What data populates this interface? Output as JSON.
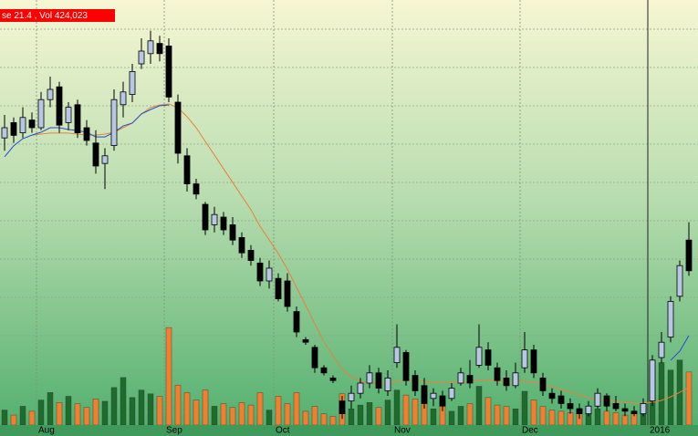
{
  "chart_data": {
    "type": "candlestick",
    "title": "se 21.4 , Vol 424,023",
    "categories": [
      null,
      null,
      null,
      null,
      "Aug",
      null,
      null,
      null,
      null,
      null,
      null,
      null,
      null,
      null,
      null,
      null,
      null,
      null,
      "Sep",
      null,
      null,
      null,
      null,
      null,
      null,
      null,
      null,
      null,
      null,
      null,
      "Oct",
      null,
      null,
      null,
      null,
      null,
      null,
      null,
      null,
      null,
      null,
      null,
      null,
      "Nov",
      null,
      null,
      null,
      null,
      null,
      null,
      null,
      null,
      null,
      null,
      null,
      null,
      null,
      "Dec",
      null,
      null,
      null,
      null,
      null,
      null,
      null,
      null,
      null,
      null,
      null,
      null,
      null,
      "2016",
      null,
      null,
      null,
      null
    ],
    "open": [
      26.6,
      27.2,
      26.8,
      27.3,
      27.0,
      28.1,
      28.6,
      27.2,
      27.9,
      27.0,
      26.4,
      25.6,
      26.3,
      27.9,
      28.3,
      29.5,
      29.9,
      30.3,
      30.2,
      28.0,
      25.9,
      24.8,
      24.0,
      23.2,
      23.5,
      23.2,
      22.7,
      22.2,
      21.7,
      21.0,
      21.1,
      21.0,
      19.8,
      18.7,
      18.4,
      17.6,
      17.2,
      16.3,
      16.3,
      16.6,
      17.0,
      17.4,
      16.7,
      17.8,
      18.2,
      17.3,
      16.9,
      16.4,
      16.5,
      16.4,
      17.0,
      17.3,
      17.7,
      18.3,
      17.6,
      17.2,
      16.9,
      17.6,
      18.3,
      17.2,
      16.6,
      16.5,
      16.2,
      16.0,
      15.8,
      16.1,
      16.5,
      16.2,
      16.0,
      15.9,
      15.8,
      16.3,
      18.0,
      18.8,
      20.4,
      22.6
    ],
    "high": [
      27.5,
      27.4,
      27.8,
      27.6,
      28.4,
      29.0,
      28.8,
      28.0,
      28.1,
      27.3,
      26.9,
      26.2,
      28.5,
      28.8,
      29.5,
      30.5,
      30.8,
      30.6,
      30.5,
      28.3,
      26.2,
      25.0,
      24.1,
      23.9,
      23.7,
      23.5,
      22.9,
      22.4,
      21.9,
      21.8,
      21.3,
      21.3,
      20.0,
      18.8,
      18.5,
      17.7,
      17.3,
      16.5,
      16.9,
      17.2,
      17.7,
      17.6,
      17.5,
      19.3,
      18.3,
      17.5,
      17.2,
      16.8,
      16.7,
      17.0,
      17.6,
      17.9,
      19.3,
      18.6,
      17.8,
      17.5,
      17.8,
      19.0,
      18.5,
      17.4,
      16.8,
      16.7,
      16.4,
      16.2,
      16.3,
      16.8,
      16.6,
      16.5,
      16.2,
      16.1,
      16.4,
      18.1,
      19.0,
      20.4,
      21.8,
      23.3
    ],
    "low": [
      26.1,
      26.4,
      26.6,
      26.8,
      26.9,
      27.8,
      26.8,
      26.9,
      26.6,
      26.3,
      25.2,
      24.6,
      26.1,
      27.4,
      28.0,
      29.3,
      29.5,
      29.6,
      28.0,
      25.6,
      24.5,
      24.2,
      22.8,
      22.9,
      22.8,
      22.4,
      21.9,
      21.6,
      20.8,
      20.7,
      20.2,
      19.8,
      18.8,
      18.5,
      17.4,
      17.3,
      17.0,
      15.6,
      16.0,
      16.4,
      16.8,
      16.6,
      16.5,
      17.6,
      16.9,
      16.5,
      16.0,
      16.1,
      15.9,
      16.3,
      16.9,
      16.8,
      17.6,
      17.5,
      16.9,
      16.7,
      16.8,
      17.4,
      17.2,
      16.5,
      16.2,
      16.0,
      15.8,
      15.6,
      15.7,
      16.0,
      15.9,
      15.9,
      15.7,
      15.7,
      15.7,
      16.1,
      17.8,
      18.6,
      20.2,
      21.2
    ],
    "close": [
      27.0,
      26.7,
      27.4,
      27.0,
      28.1,
      28.5,
      27.1,
      27.8,
      26.8,
      26.5,
      25.5,
      25.9,
      28.1,
      28.4,
      29.2,
      30.0,
      30.4,
      29.9,
      28.2,
      26.0,
      24.8,
      24.4,
      23.0,
      23.6,
      23.0,
      22.6,
      22.1,
      21.8,
      21.0,
      21.5,
      20.3,
      20.0,
      19.0,
      18.6,
      17.6,
      17.4,
      17.1,
      15.8,
      16.6,
      17.0,
      17.4,
      16.8,
      17.2,
      18.4,
      17.1,
      16.7,
      16.2,
      16.6,
      16.1,
      16.8,
      17.4,
      17.0,
      18.4,
      17.7,
      17.1,
      16.9,
      17.4,
      18.3,
      17.4,
      16.7,
      16.4,
      16.2,
      16.0,
      15.8,
      16.1,
      16.6,
      16.1,
      16.0,
      15.9,
      15.8,
      16.2,
      17.9,
      18.6,
      20.2,
      21.6,
      21.4
    ],
    "volume": [
      120000,
      80000,
      150000,
      110000,
      200000,
      260000,
      180000,
      230000,
      170000,
      140000,
      210000,
      190000,
      300000,
      380000,
      220000,
      280000,
      250000,
      230000,
      780000,
      320000,
      260000,
      200000,
      280000,
      150000,
      170000,
      140000,
      180000,
      160000,
      260000,
      120000,
      230000,
      170000,
      260000,
      110000,
      150000,
      90000,
      70000,
      250000,
      130000,
      160000,
      180000,
      140000,
      200000,
      280000,
      240000,
      210000,
      260000,
      130000,
      190000,
      110000,
      150000,
      170000,
      310000,
      220000,
      160000,
      150000,
      130000,
      270000,
      200000,
      150000,
      120000,
      110000,
      100000,
      120000,
      90000,
      130000,
      110000,
      100000,
      80000,
      90000,
      170000,
      480000,
      500000,
      440000,
      520000,
      424023
    ],
    "ma_lines": [
      {
        "color": "#e8823a",
        "values": [
          null,
          null,
          null,
          26.71,
          26.75,
          26.79,
          26.79,
          26.79,
          26.75,
          26.71,
          26.71,
          26.75,
          26.82,
          27.0,
          27.18,
          27.54,
          27.79,
          27.89,
          27.93,
          27.79,
          27.43,
          27.0,
          26.46,
          25.93,
          25.39,
          24.86,
          24.32,
          23.79,
          23.14,
          22.61,
          22.07,
          21.46,
          20.75,
          20.04,
          19.32,
          18.61,
          18.07,
          17.54,
          17.25,
          17.07,
          17.0,
          17.0,
          17.0,
          17.07,
          17.11,
          17.11,
          17.07,
          17.04,
          17.0,
          17.04,
          17.07,
          17.07,
          17.11,
          17.11,
          17.07,
          17.04,
          17.07,
          17.07,
          17.04,
          16.96,
          16.86,
          16.75,
          16.64,
          16.54,
          16.43,
          16.36,
          16.32,
          16.29,
          16.25,
          16.21,
          16.21,
          16.25,
          16.32,
          16.46,
          16.64,
          16.82
        ]
      },
      {
        "color": "#1f4fd0",
        "values": [
          25.86,
          26.29,
          26.57,
          26.71,
          26.82,
          27.0,
          27.0,
          26.93,
          26.89,
          26.82,
          26.64,
          26.64,
          26.82,
          27.07,
          27.18,
          27.54,
          27.71,
          27.86,
          27.89,
          null,
          null,
          null,
          null,
          null,
          null,
          null,
          null,
          null,
          null,
          null,
          null,
          null,
          null,
          null,
          null,
          null,
          null,
          null,
          null,
          null,
          null,
          null,
          null,
          null,
          null,
          null,
          null,
          null,
          null,
          null,
          null,
          null,
          null,
          null,
          null,
          null,
          null,
          null,
          null,
          null,
          null,
          null,
          null,
          null,
          null,
          null,
          null,
          null,
          null,
          null,
          null,
          null,
          null,
          17.89,
          18.25,
          18.86
        ]
      }
    ],
    "ylim": [
      15,
      32
    ],
    "vlim": [
      0,
      3400000
    ],
    "up_color": "#b8c8e2",
    "down_color": "#000000",
    "volume_up_color": "#1e6b2e",
    "volume_down_color": "#f08030"
  }
}
